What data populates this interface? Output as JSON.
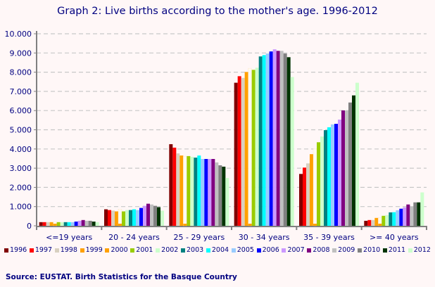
{
  "title": "Graph 2: Live births according to the mother's age. 1996-2012",
  "source": "Source: EUSTAT. Birth Statistics for the Basque Country",
  "chart_data": {
    "type": "bar",
    "title": "Graph 2: Live births according to the mother's age. 1996-2012",
    "xlabel": "",
    "ylabel": "",
    "ylim": [
      0,
      10000
    ],
    "yticks": [
      "0",
      "1.000",
      "2.000",
      "3.000",
      "4.000",
      "5.000",
      "6.000",
      "7.000",
      "8.000",
      "9.000",
      "10.000"
    ],
    "grid": true,
    "legend_position": "bottom",
    "categories": [
      "<=19 years",
      "20 - 24 years",
      "25 - 29 years",
      "30 - 34 years",
      "35 - 39 years",
      ">= 40 years"
    ],
    "series": [
      {
        "name": "1996",
        "color": "#800000",
        "values": [
          190,
          860,
          4250,
          7450,
          2700,
          260
        ]
      },
      {
        "name": "1997",
        "color": "#ff0000",
        "values": [
          190,
          820,
          4070,
          7790,
          3030,
          300
        ]
      },
      {
        "name": "1998",
        "color": "#d8d0c0",
        "values": [
          190,
          790,
          3770,
          7700,
          3250,
          300
        ]
      },
      {
        "name": "1999",
        "color": "#ffa000",
        "values": [
          190,
          750,
          3660,
          8010,
          3730,
          410
        ]
      },
      {
        "name": "2000",
        "color": "#ffa000",
        "values": [
          190,
          860,
          3620,
          8200,
          4020,
          420
        ]
      },
      {
        "name": "2001",
        "color": "#99cc00",
        "values": [
          190,
          750,
          3630,
          8120,
          4350,
          520
        ]
      },
      {
        "name": "2002",
        "color": "#ccffcc",
        "values": [
          190,
          820,
          3590,
          8230,
          4650,
          560
        ]
      },
      {
        "name": "2003",
        "color": "#008080",
        "values": [
          190,
          820,
          3550,
          8820,
          4980,
          700
        ]
      },
      {
        "name": "2004",
        "color": "#00ffff",
        "values": [
          190,
          860,
          3660,
          8890,
          5130,
          710
        ]
      },
      {
        "name": "2005",
        "color": "#99ccff",
        "values": [
          190,
          820,
          3480,
          8970,
          5280,
          810
        ]
      },
      {
        "name": "2006",
        "color": "#0000ff",
        "values": [
          220,
          930,
          3480,
          9080,
          5310,
          890
        ]
      },
      {
        "name": "2007",
        "color": "#cc99ff",
        "values": [
          260,
          1040,
          3480,
          9190,
          5530,
          960
        ]
      },
      {
        "name": "2008",
        "color": "#800080",
        "values": [
          300,
          1150,
          3480,
          9110,
          6010,
          1110
        ]
      },
      {
        "name": "2009",
        "color": "#c0c0c0",
        "values": [
          260,
          1110,
          3300,
          9110,
          6010,
          1000
        ]
      },
      {
        "name": "2010",
        "color": "#808080",
        "values": [
          260,
          1040,
          3150,
          8970,
          6420,
          1220
        ]
      },
      {
        "name": "2011",
        "color": "#003300",
        "values": [
          220,
          970,
          3080,
          8780,
          6790,
          1220
        ]
      },
      {
        "name": "2012",
        "color": "#ccffcc",
        "values": [
          190,
          790,
          2490,
          7750,
          7450,
          1740
        ]
      }
    ]
  }
}
